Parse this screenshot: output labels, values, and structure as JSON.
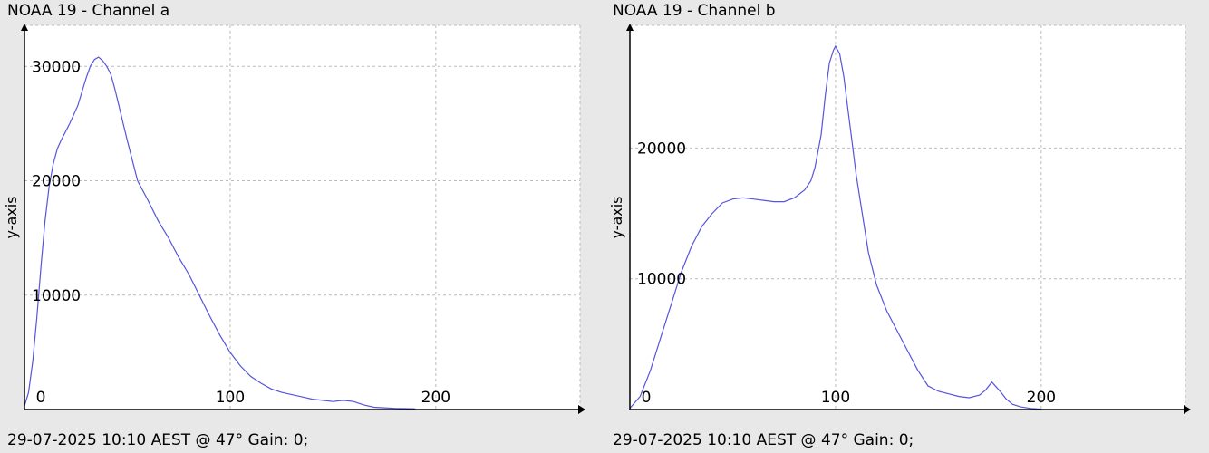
{
  "chart_data": [
    {
      "type": "line",
      "title": "NOAA 19 - Channel a",
      "footer": "29-07-2025 10:10 AEST @ 47° Gain: 0;",
      "xlabel": "",
      "ylabel": "y-axis",
      "xlim": [
        0,
        255
      ],
      "ylim": [
        0,
        32000
      ],
      "xticks": [
        0,
        100,
        200
      ],
      "yticks": [
        10000,
        20000,
        30000
      ],
      "grid": true,
      "line_color": "#5555dd",
      "series": [
        {
          "x": [
            0,
            2,
            4,
            6,
            8,
            10,
            12,
            14,
            16,
            18,
            20,
            22,
            24,
            26,
            28,
            30,
            32,
            34,
            36,
            38,
            40,
            42,
            44,
            46,
            48,
            50,
            55,
            60,
            65,
            70,
            75,
            80,
            85,
            90,
            95,
            100,
            105,
            110,
            115,
            120,
            125,
            130,
            135,
            140,
            145,
            150,
            155,
            160,
            165,
            170,
            175,
            180,
            185,
            190
          ],
          "y": [
            300,
            1500,
            4200,
            8000,
            12500,
            16500,
            19500,
            21500,
            22800,
            23600,
            24300,
            25000,
            25800,
            26600,
            27800,
            29000,
            30000,
            30600,
            30800,
            30500,
            30000,
            29300,
            28000,
            26500,
            25000,
            23500,
            20000,
            18300,
            16500,
            15000,
            13300,
            11800,
            10000,
            8200,
            6500,
            5000,
            3800,
            2900,
            2300,
            1800,
            1500,
            1300,
            1100,
            900,
            800,
            700,
            800,
            700,
            400,
            200,
            150,
            100,
            80,
            60
          ]
        }
      ]
    },
    {
      "type": "line",
      "title": "NOAA 19 - Channel b",
      "footer": "29-07-2025 10:10 AEST @ 47° Gain: 0;",
      "xlabel": "",
      "ylabel": "y-axis",
      "xlim": [
        0,
        255
      ],
      "ylim": [
        0,
        28000
      ],
      "xticks": [
        0,
        100,
        200
      ],
      "yticks": [
        10000,
        20000
      ],
      "grid": true,
      "line_color": "#5555dd",
      "series": [
        {
          "x": [
            0,
            5,
            10,
            15,
            20,
            25,
            30,
            35,
            40,
            45,
            50,
            55,
            60,
            65,
            70,
            75,
            80,
            85,
            88,
            90,
            93,
            95,
            97,
            99,
            100,
            102,
            104,
            106,
            108,
            110,
            113,
            116,
            120,
            125,
            130,
            135,
            140,
            145,
            150,
            155,
            160,
            165,
            170,
            173,
            176,
            180,
            183,
            186,
            190,
            195,
            200
          ],
          "y": [
            100,
            1000,
            3000,
            5500,
            8000,
            10500,
            12500,
            14000,
            15000,
            15800,
            16100,
            16200,
            16100,
            16000,
            15900,
            15900,
            16200,
            16800,
            17500,
            18500,
            21000,
            24000,
            26500,
            27500,
            27800,
            27200,
            25500,
            23000,
            20500,
            18000,
            15000,
            12000,
            9500,
            7500,
            6000,
            4500,
            3000,
            1800,
            1400,
            1200,
            1000,
            900,
            1100,
            1500,
            2100,
            1400,
            800,
            400,
            200,
            80,
            30
          ]
        }
      ]
    }
  ]
}
